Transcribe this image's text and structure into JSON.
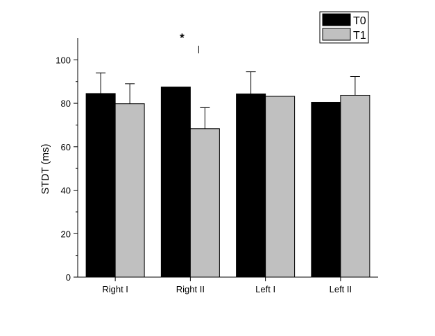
{
  "chart_data": {
    "type": "bar",
    "title": "",
    "xlabel": "",
    "ylabel": "STDT (ms)",
    "ylim": [
      0,
      110
    ],
    "yticks": [
      0,
      20,
      40,
      60,
      80,
      100
    ],
    "categories": [
      "Right I",
      "Right II",
      "Left I",
      "Left II"
    ],
    "series": [
      {
        "name": "T0",
        "color": "#000000",
        "values": [
          84.5,
          87.5,
          84.3,
          80.5
        ],
        "error_upper": [
          94,
          null,
          94.5,
          null
        ]
      },
      {
        "name": "T1",
        "color": "#c0c0c0",
        "values": [
          79.8,
          68.3,
          83.2,
          83.7
        ],
        "error_upper": [
          89,
          78,
          null,
          92.3
        ]
      }
    ],
    "annotations": [
      {
        "text": "*",
        "category": "Right II"
      }
    ],
    "legend_position": "top-right",
    "grid": false
  }
}
